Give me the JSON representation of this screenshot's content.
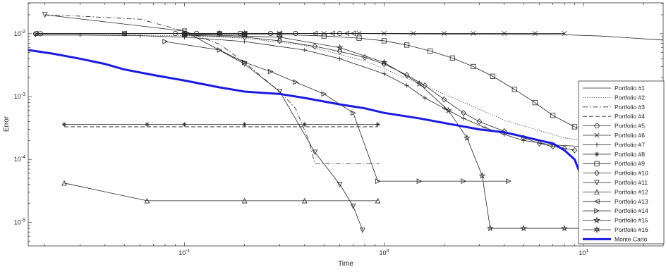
{
  "chart_data": {
    "type": "line",
    "title": "",
    "xlabel": "Time",
    "ylabel": "Error",
    "xscale": "log",
    "yscale": "log",
    "xlim": [
      0.0165,
      25
    ],
    "ylim": [
      4.2e-06,
      0.031
    ],
    "grid": false,
    "legend_position": "right",
    "x_ticks": [
      {
        "value": 0.1,
        "label": "10^-1"
      },
      {
        "value": 1,
        "label": "10^0"
      },
      {
        "value": 10,
        "label": "10^1"
      }
    ],
    "y_ticks": [
      {
        "value": 1e-05,
        "label": "10^-5"
      },
      {
        "value": 0.0001,
        "label": "10^-4"
      },
      {
        "value": 0.001,
        "label": "10^-3"
      },
      {
        "value": 0.01,
        "label": "10^-2"
      }
    ],
    "series": [
      {
        "name": "Portfolio #1",
        "line_style": "solid",
        "marker": "none",
        "x": [
          0.018,
          0.05,
          0.1,
          0.3,
          1,
          3,
          8,
          12,
          16,
          25
        ],
        "y": [
          0.0101,
          0.0101,
          0.0101,
          0.0101,
          0.01,
          0.0098,
          0.0096,
          0.0092,
          0.0087,
          0.0079
        ]
      },
      {
        "name": "Portfolio #2",
        "line_style": "dotted",
        "marker": "none",
        "x": [
          0.018,
          0.06,
          0.1,
          0.2,
          0.4,
          0.8,
          2,
          4,
          8,
          15,
          25
        ],
        "y": [
          0.0096,
          0.0095,
          0.0093,
          0.0085,
          0.0065,
          0.0037,
          0.0011,
          0.00042,
          0.00022,
          0.00017,
          0.00016
        ]
      },
      {
        "name": "Portfolio #3",
        "line_style": "dashdot",
        "marker": "none",
        "x": [
          0.02,
          0.03,
          0.06,
          0.1,
          0.15,
          0.2,
          0.3,
          0.36,
          0.42,
          0.45,
          0.8,
          0.95
        ],
        "y": [
          0.02,
          0.019,
          0.017,
          0.011,
          0.0068,
          0.0035,
          0.0012,
          0.00065,
          0.0002,
          8.5e-05,
          8.5e-05,
          8.5e-05
        ]
      },
      {
        "name": "Portfolio #4",
        "line_style": "dashed",
        "marker": "none",
        "x": [
          0.025,
          0.05,
          0.1,
          0.2,
          0.4,
          0.93
        ],
        "y": [
          0.00033,
          0.00033,
          0.00033,
          0.00033,
          0.00033,
          0.00033
        ]
      },
      {
        "name": "Portfolio #5",
        "line_style": "solid",
        "marker": "circle",
        "x": [
          0.018,
          0.019,
          0.05,
          0.09,
          0.115,
          0.15,
          0.19,
          0.27,
          0.36,
          0.6
        ],
        "y": [
          0.01,
          0.01,
          0.01,
          0.0101,
          0.0101,
          0.0101,
          0.0101,
          0.0101,
          0.0101,
          0.0101
        ]
      },
      {
        "name": "Portfolio #6",
        "line_style": "solid",
        "marker": "x",
        "x": [
          0.05,
          0.1,
          0.15,
          0.2,
          0.3,
          0.5,
          0.75,
          1,
          1.4,
          2,
          2.8,
          4,
          5.7,
          8
        ],
        "y": [
          0.0101,
          0.0101,
          0.0101,
          0.0101,
          0.0101,
          0.0101,
          0.0101,
          0.0101,
          0.0101,
          0.0101,
          0.0101,
          0.0101,
          0.0101,
          0.0101
        ]
      },
      {
        "name": "Portfolio #7",
        "line_style": "solid",
        "marker": "plus",
        "x": [
          0.018,
          0.03,
          0.06,
          0.1,
          0.2,
          0.4,
          0.6,
          1,
          1.3,
          1.6,
          2,
          2.5,
          3.2,
          4,
          5,
          7,
          10,
          14
        ],
        "y": [
          0.0095,
          0.0095,
          0.0093,
          0.0088,
          0.0075,
          0.0055,
          0.004,
          0.0023,
          0.0015,
          0.00095,
          0.00065,
          0.00045,
          0.00032,
          0.00025,
          0.0002,
          0.00017,
          0.00016,
          0.00015
        ]
      },
      {
        "name": "Portfolio #8",
        "line_style": "solid",
        "marker": "star",
        "x": [
          0.025,
          0.065,
          0.1,
          0.2,
          0.4,
          0.93
        ],
        "y": [
          0.00036,
          0.00036,
          0.00036,
          0.00036,
          0.00036,
          0.00036
        ]
      },
      {
        "name": "Portfolio #9",
        "line_style": "solid",
        "marker": "square",
        "x": [
          0.1,
          0.2,
          0.3,
          0.5,
          0.75,
          1,
          1.3,
          1.7,
          2.2,
          2.8,
          3.5,
          4.5,
          5.7,
          7,
          9,
          11,
          14,
          18
        ],
        "y": [
          0.0098,
          0.0098,
          0.0097,
          0.0092,
          0.0085,
          0.0077,
          0.0066,
          0.0053,
          0.0041,
          0.003,
          0.0021,
          0.0013,
          0.0008,
          0.0005,
          0.00033,
          0.00026,
          0.00022,
          0.00021
        ]
      },
      {
        "name": "Portfolio #10",
        "line_style": "solid",
        "marker": "diamond",
        "x": [
          0.1,
          0.2,
          0.3,
          0.45,
          0.6,
          0.8,
          1,
          1.3,
          1.6,
          2,
          2.5,
          3,
          4,
          5,
          6,
          7,
          8,
          9
        ],
        "y": [
          0.0095,
          0.0088,
          0.0077,
          0.0063,
          0.0052,
          0.0042,
          0.0033,
          0.0022,
          0.0015,
          0.0009,
          0.00055,
          0.0004,
          0.00028,
          0.00022,
          0.00018,
          0.00016,
          0.00015,
          0.00014
        ]
      },
      {
        "name": "Portfolio #11",
        "line_style": "solid",
        "marker": "triangle-down",
        "x": [
          0.02,
          0.1,
          0.2,
          0.3,
          0.45,
          0.6,
          0.7,
          0.78
        ],
        "y": [
          0.02,
          0.011,
          0.0033,
          0.0012,
          0.00013,
          4e-05,
          1.8e-05,
          7.5e-06
        ]
      },
      {
        "name": "Portfolio #12",
        "line_style": "solid",
        "marker": "triangle-up",
        "x": [
          0.025,
          0.065,
          0.2,
          0.4,
          0.93
        ],
        "y": [
          4.2e-05,
          2.2e-05,
          2.2e-05,
          2.2e-05,
          2.2e-05
        ]
      },
      {
        "name": "Portfolio #13",
        "line_style": "solid",
        "marker": "triangle-left",
        "x": [
          0.018,
          0.05,
          0.1,
          0.2,
          0.3,
          0.45,
          0.55,
          0.65,
          0.7
        ],
        "y": [
          0.0101,
          0.0101,
          0.0101,
          0.0101,
          0.0101,
          0.0101,
          0.0101,
          0.0101,
          0.0101
        ]
      },
      {
        "name": "Portfolio #14",
        "line_style": "solid",
        "marker": "triangle-right",
        "x": [
          0.08,
          0.15,
          0.2,
          0.27,
          0.36,
          0.5,
          0.7,
          0.93,
          1.5,
          2.5,
          4.2
        ],
        "y": [
          0.0075,
          0.0055,
          0.0035,
          0.0025,
          0.0017,
          0.0011,
          0.00055,
          4.5e-05,
          4.5e-05,
          4.5e-05,
          4.5e-05
        ]
      },
      {
        "name": "Portfolio #15",
        "line_style": "solid",
        "marker": "pentagram",
        "x": [
          0.1,
          0.3,
          0.6,
          1,
          1.5,
          2.1,
          2.6,
          3.1,
          3.4,
          5,
          8,
          13,
          20
        ],
        "y": [
          0.0098,
          0.0088,
          0.006,
          0.0035,
          0.0016,
          0.0006,
          0.00022,
          5.5e-05,
          8e-06,
          8e-06,
          8e-06,
          8e-06,
          8e-06
        ]
      },
      {
        "name": "Portfolio #16",
        "line_style": "solid",
        "marker": "hexagram",
        "x": [
          0.15,
          0.2
        ],
        "y": [
          0.0101,
          0.0101
        ]
      },
      {
        "name": "Monte Carlo",
        "line_style": "thick-solid",
        "marker": "none",
        "color": "#1a1adf",
        "x": [
          0.0165,
          0.022,
          0.03,
          0.04,
          0.05,
          0.07,
          0.1,
          0.15,
          0.2,
          0.3,
          0.4,
          0.6,
          0.8,
          1,
          1.5,
          2,
          3,
          4,
          5,
          6,
          7,
          8,
          9,
          9.8,
          10.1,
          10.3,
          10.4
        ],
        "y": [
          0.0055,
          0.0048,
          0.004,
          0.0033,
          0.0027,
          0.0022,
          0.0018,
          0.0014,
          0.0012,
          0.0011,
          0.00095,
          0.00075,
          0.00065,
          0.00055,
          0.00045,
          0.00038,
          0.0003,
          0.00027,
          0.00023,
          0.0002,
          0.00018,
          0.00014,
          0.0001,
          5e-05,
          1.5e-05,
          7e-06,
          4.5e-06
        ]
      }
    ]
  }
}
